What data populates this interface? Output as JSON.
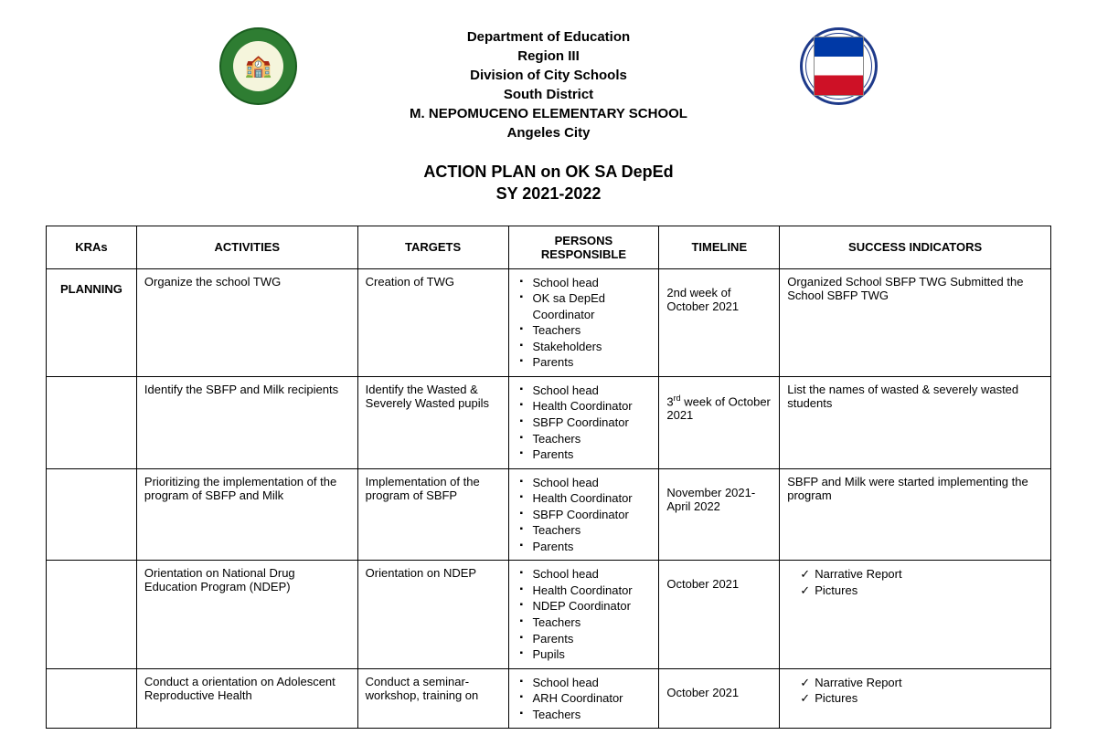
{
  "header": {
    "lines": [
      "Department of Education",
      "Region III",
      "Division of City Schools",
      "South District",
      "M. NEPOMUCENO ELEMENTARY SCHOOL",
      "Angeles City"
    ]
  },
  "title": {
    "line1": "ACTION PLAN on OK SA DepEd",
    "line2": "SY 2021-2022"
  },
  "table": {
    "columns": [
      "KRAs",
      "ACTIVITIES",
      "TARGETS",
      "PERSONS RESPONSIBLE",
      "TIMELINE",
      "SUCCESS INDICATORS"
    ],
    "col_widths": [
      "9%",
      "22%",
      "15%",
      "15%",
      "12%",
      "27%"
    ],
    "rows": [
      {
        "kra": "PLANNING",
        "activity": "Organize the school  TWG",
        "target": "Creation of  TWG",
        "persons": [
          "School head",
          "OK sa DepEd Coordinator",
          "Teachers",
          "Stakeholders",
          "Parents"
        ],
        "timeline": "2nd week of October 2021",
        "indicator_type": "text",
        "indicator": "Organized School SBFP TWG Submitted the School SBFP TWG"
      },
      {
        "kra": "",
        "activity": "Identify the SBFP and Milk recipients",
        "target": "Identify the Wasted & Severely Wasted pupils",
        "persons": [
          "School head",
          "Health Coordinator",
          "SBFP Coordinator",
          "Teachers",
          "Parents"
        ],
        "timeline_html": "3<sup>rd</sup> week of October 2021",
        "indicator_type": "text",
        "indicator": "List the names of wasted & severely wasted students"
      },
      {
        "kra": "",
        "activity": "Prioritizing the implementation of the program of SBFP and Milk",
        "target": "Implementation of the program of SBFP",
        "persons": [
          "School head",
          "Health Coordinator",
          "SBFP Coordinator",
          "Teachers",
          "Parents"
        ],
        "timeline": "November 2021- April 2022",
        "indicator_type": "text",
        "indicator": "SBFP and Milk were started implementing the program"
      },
      {
        "kra": "",
        "activity": "Orientation on National Drug Education Program (NDEP)",
        "target": "Orientation on NDEP",
        "persons": [
          "School head",
          "Health Coordinator",
          "NDEP Coordinator",
          "Teachers",
          "Parents",
          "Pupils"
        ],
        "timeline": "October 2021",
        "indicator_type": "checks",
        "indicator_items": [
          "Narrative Report",
          "Pictures"
        ]
      },
      {
        "kra": "",
        "activity": "Conduct a orientation on Adolescent Reproductive Health",
        "target": "Conduct a seminar-workshop, training on",
        "persons": [
          "School head",
          "ARH Coordinator",
          "Teachers"
        ],
        "timeline": "October 2021",
        "indicator_type": "checks",
        "indicator_items": [
          "Narrative Report",
          "Pictures"
        ]
      }
    ]
  },
  "style": {
    "background_color": "#ffffff",
    "border_color": "#000000",
    "text_color": "#000000",
    "header_font_size": 15,
    "title_font_size": 18,
    "body_font_size": 13
  }
}
